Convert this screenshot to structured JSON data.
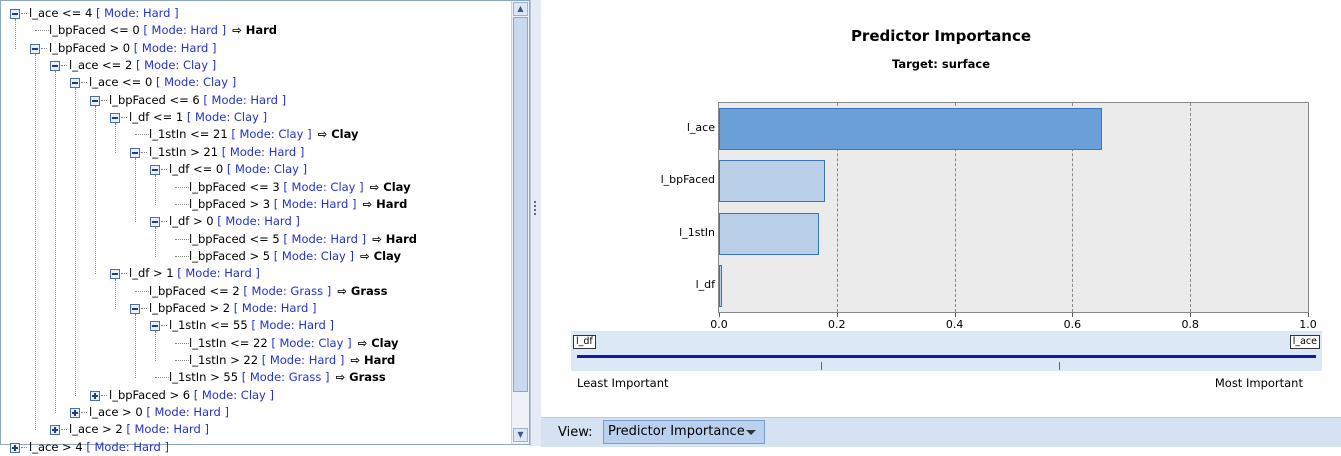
{
  "tree": {
    "rows": [
      {
        "depth": 0,
        "toggle": "minus",
        "label": "l_ace <= 4",
        "mode": "[ Mode: Hard ]",
        "prediction": ""
      },
      {
        "depth": 1,
        "toggle": "leaf",
        "label": "l_bpFaced <= 0",
        "mode": "[ Mode: Hard ]",
        "prediction": "Hard"
      },
      {
        "depth": 1,
        "toggle": "minus",
        "label": "l_bpFaced > 0",
        "mode": "[ Mode: Hard ]",
        "prediction": ""
      },
      {
        "depth": 2,
        "toggle": "minus",
        "label": "l_ace <= 2",
        "mode": "[ Mode: Clay ]",
        "prediction": ""
      },
      {
        "depth": 3,
        "toggle": "minus",
        "label": "l_ace <= 0",
        "mode": "[ Mode: Clay ]",
        "prediction": ""
      },
      {
        "depth": 4,
        "toggle": "minus",
        "label": "l_bpFaced <= 6",
        "mode": "[ Mode: Hard ]",
        "prediction": ""
      },
      {
        "depth": 5,
        "toggle": "minus",
        "label": "l_df <= 1",
        "mode": "[ Mode: Clay ]",
        "prediction": ""
      },
      {
        "depth": 6,
        "toggle": "leaf",
        "label": "l_1stIn <= 21",
        "mode": "[ Mode: Clay ]",
        "prediction": "Clay"
      },
      {
        "depth": 6,
        "toggle": "minus",
        "label": "l_1stIn > 21",
        "mode": "[ Mode: Hard ]",
        "prediction": ""
      },
      {
        "depth": 7,
        "toggle": "minus",
        "label": "l_df <= 0",
        "mode": "[ Mode: Clay ]",
        "prediction": ""
      },
      {
        "depth": 8,
        "toggle": "leaf",
        "label": "l_bpFaced <= 3",
        "mode": "[ Mode: Clay ]",
        "prediction": "Clay"
      },
      {
        "depth": 8,
        "toggle": "leaf",
        "label": "l_bpFaced > 3",
        "mode": "[ Mode: Hard ]",
        "prediction": "Hard"
      },
      {
        "depth": 7,
        "toggle": "minus",
        "label": "l_df > 0",
        "mode": "[ Mode: Hard ]",
        "prediction": ""
      },
      {
        "depth": 8,
        "toggle": "leaf",
        "label": "l_bpFaced <= 5",
        "mode": "[ Mode: Hard ]",
        "prediction": "Hard"
      },
      {
        "depth": 8,
        "toggle": "leaf",
        "label": "l_bpFaced > 5",
        "mode": "[ Mode: Clay ]",
        "prediction": "Clay"
      },
      {
        "depth": 5,
        "toggle": "minus",
        "label": "l_df > 1",
        "mode": "[ Mode: Hard ]",
        "prediction": ""
      },
      {
        "depth": 6,
        "toggle": "leaf",
        "label": "l_bpFaced <= 2",
        "mode": "[ Mode: Grass ]",
        "prediction": "Grass"
      },
      {
        "depth": 6,
        "toggle": "minus",
        "label": "l_bpFaced > 2",
        "mode": "[ Mode: Hard ]",
        "prediction": ""
      },
      {
        "depth": 7,
        "toggle": "minus",
        "label": "l_1stIn <= 55",
        "mode": "[ Mode: Hard ]",
        "prediction": ""
      },
      {
        "depth": 8,
        "toggle": "leaf",
        "label": "l_1stIn <= 22",
        "mode": "[ Mode: Clay ]",
        "prediction": "Clay"
      },
      {
        "depth": 8,
        "toggle": "leaf",
        "label": "l_1stIn > 22",
        "mode": "[ Mode: Hard ]",
        "prediction": "Hard"
      },
      {
        "depth": 7,
        "toggle": "leaf",
        "label": "l_1stIn > 55",
        "mode": "[ Mode: Grass ]",
        "prediction": "Grass"
      },
      {
        "depth": 4,
        "toggle": "plus",
        "label": "l_bpFaced > 6",
        "mode": "[ Mode: Clay ]",
        "prediction": ""
      },
      {
        "depth": 3,
        "toggle": "plus",
        "label": "l_ace > 0",
        "mode": "[ Mode: Hard ]",
        "prediction": ""
      },
      {
        "depth": 2,
        "toggle": "plus",
        "label": "l_ace > 2",
        "mode": "[ Mode: Hard ]",
        "prediction": ""
      },
      {
        "depth": 0,
        "toggle": "plus",
        "label": "l_ace > 4",
        "mode": "[ Mode: Hard ]",
        "prediction": ""
      }
    ],
    "prediction_arrow": "⇨"
  },
  "chart_data": {
    "type": "bar",
    "orientation": "horizontal",
    "title": "Predictor Importance",
    "subtitle": "Target: surface",
    "categories": [
      "l_ace",
      "l_bpFaced",
      "l_1stIn",
      "l_df"
    ],
    "values": [
      0.65,
      0.18,
      0.17,
      0.005
    ],
    "xlim": [
      0.0,
      1.0
    ],
    "xticks": [
      "0.0",
      "0.2",
      "0.4",
      "0.6",
      "0.8",
      "1.0"
    ],
    "grid": "dashed vertical",
    "colors": {
      "top_bar": "#6a9fd8",
      "other_bars": "#b9cfe8",
      "background": "#ebebeb"
    }
  },
  "importance_scale": {
    "least_tag": "l_df",
    "most_tag": "l_ace",
    "least_label": "Least Important",
    "most_label": "Most Important"
  },
  "view_bar": {
    "label": "View:",
    "selected": "Predictor Importance"
  }
}
